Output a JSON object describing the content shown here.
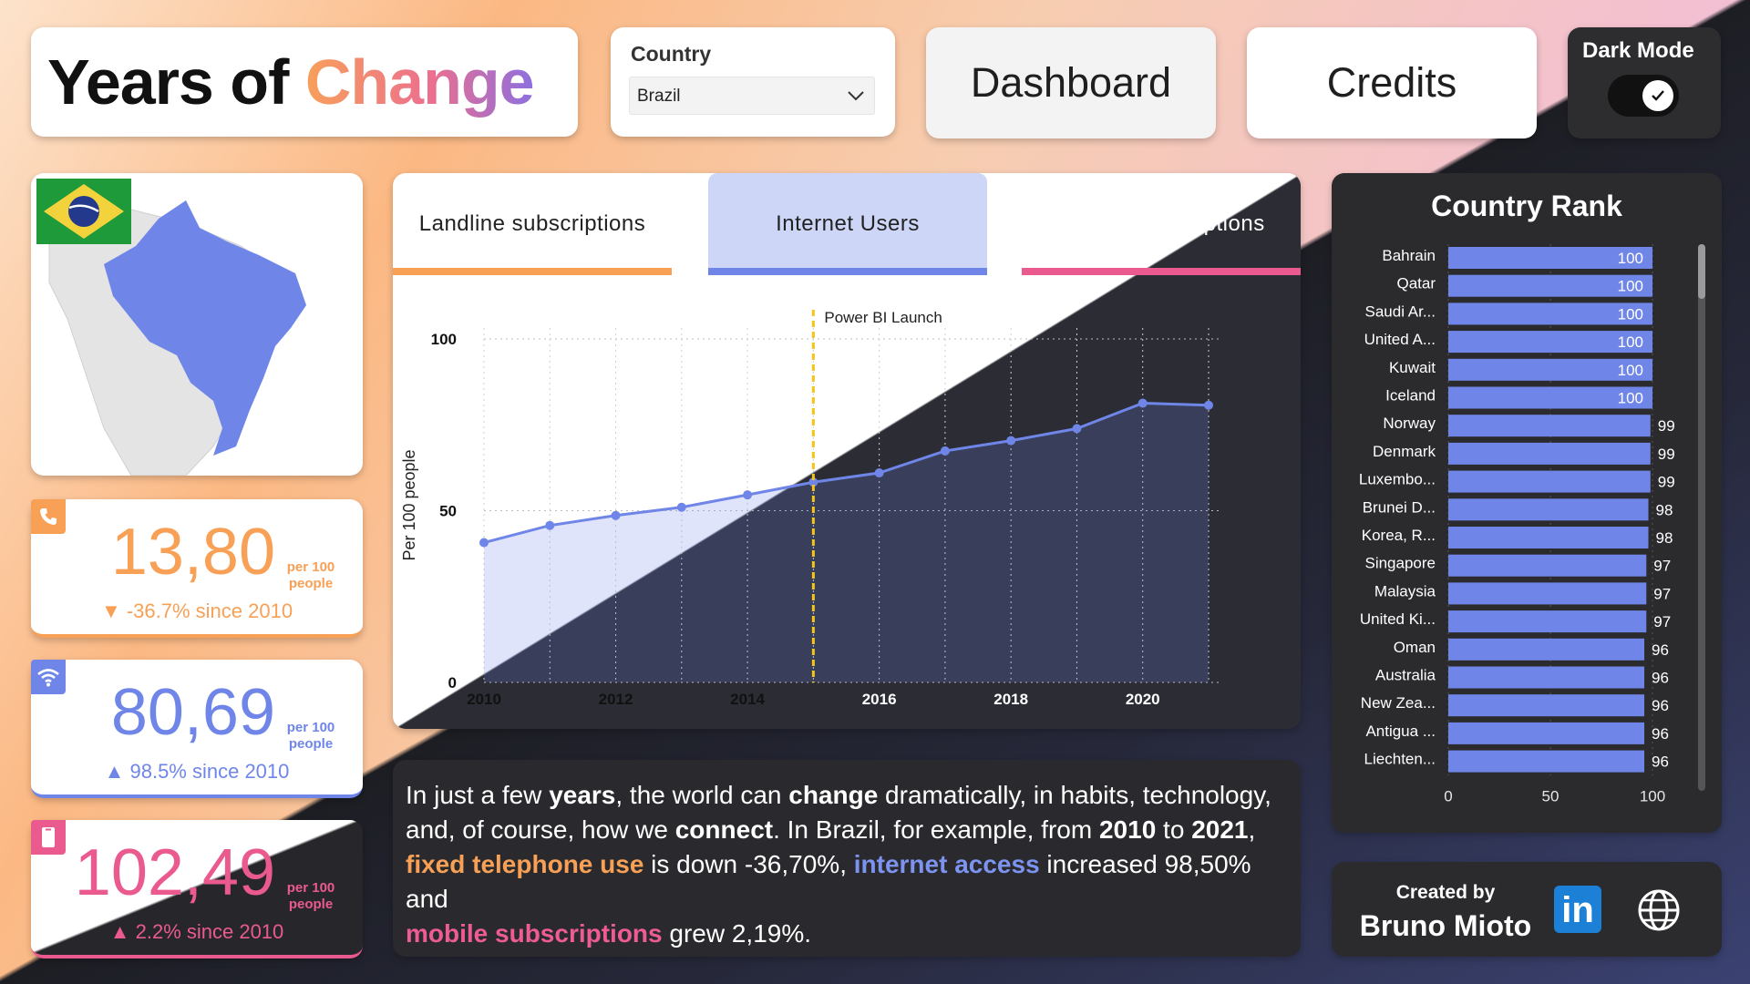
{
  "title": {
    "prefix": "Years of ",
    "accent": "Change"
  },
  "country_slicer": {
    "label": "Country",
    "value": "Brazil"
  },
  "nav": {
    "dashboard_label": "Dashboard",
    "credits_label": "Credits"
  },
  "dark_mode": {
    "label": "Dark Mode",
    "checked": true
  },
  "colors": {
    "landline": "#f7a056",
    "internet": "#6f86e8",
    "mobile": "#ea5a8f",
    "dark_panel": "#2b2b2e",
    "bar": "#6f86e8",
    "launch_line": "#f5c518"
  },
  "kpis": {
    "landline": {
      "icon": "phone-icon",
      "value": "13,80",
      "unit_line1": "per 100",
      "unit_line2": "people",
      "delta": "▼ -36.7% since 2010"
    },
    "internet": {
      "icon": "wifi-icon",
      "value": "80,69",
      "unit_line1": "per 100",
      "unit_line2": "people",
      "delta": "▲ 98.5% since 2010"
    },
    "mobile": {
      "icon": "mobile-icon",
      "value": "102,49",
      "unit_line1": "per 100",
      "unit_line2": "people",
      "delta": "▲ 2.2% since 2010"
    }
  },
  "tabs": [
    {
      "label": "Landline subscriptions",
      "active": false
    },
    {
      "label": "Internet Users",
      "active": true
    },
    {
      "label": "Mobile subscriptions",
      "active": false
    }
  ],
  "chart_data": [
    {
      "type": "area",
      "title": "",
      "xlabel": "",
      "ylabel": "Per 100 people",
      "x": [
        2010,
        2011,
        2012,
        2013,
        2014,
        2015,
        2016,
        2017,
        2018,
        2019,
        2020,
        2021
      ],
      "series": [
        {
          "name": "Internet Users",
          "values": [
            40.7,
            45.7,
            48.6,
            51.0,
            54.6,
            58.3,
            61.0,
            67.4,
            70.4,
            73.9,
            81.3,
            80.7
          ]
        }
      ],
      "xticks": [
        "2010",
        "2012",
        "2014",
        "2016",
        "2018",
        "2020"
      ],
      "yticks": [
        "0",
        "50",
        "100"
      ],
      "xlim": [
        2010,
        2021
      ],
      "ylim": [
        0,
        100
      ],
      "grid": true,
      "annotation": {
        "label": "Power BI Launch",
        "x": 2015
      }
    },
    {
      "type": "bar",
      "title": "Country Rank",
      "orientation": "horizontal",
      "categories": [
        "Bahrain",
        "Qatar",
        "Saudi Ar...",
        "United A...",
        "Kuwait",
        "Iceland",
        "Norway",
        "Denmark",
        "Luxembo...",
        "Brunei D...",
        "Korea, R...",
        "Singapore",
        "Malaysia",
        "United Ki...",
        "Oman",
        "Australia",
        "New Zea...",
        "Antigua ...",
        "Liechten..."
      ],
      "values": [
        100,
        100,
        100,
        100,
        100,
        100,
        99,
        99,
        99,
        98,
        98,
        97,
        97,
        97,
        96,
        96,
        96,
        96,
        96
      ],
      "xticks": [
        "0",
        "50",
        "100"
      ],
      "xlim": [
        0,
        100
      ]
    }
  ],
  "narrative": {
    "t1": "In just a few ",
    "b1": "years",
    "t2": ", the world can ",
    "b2": "change",
    "t3": " dramatically, in habits, technology, and, of course, how we ",
    "b3": "connect",
    "t4": ".   In Brazil, for example, from ",
    "b4": "2010",
    "t5": " to ",
    "b5": "2021",
    "t6": ",",
    "h1": "fixed telephone use",
    "t7": " is down -36,70%, ",
    "h2": "internet access",
    "t8": " increased 98,50% and ",
    "h3": "mobile subscriptions",
    "t9": " grew 2,19%."
  },
  "credits": {
    "created_by": "Created by",
    "author": "Bruno Mioto",
    "linkedin": "in",
    "linkedin_icon": "linkedin-icon",
    "web_icon": "globe-icon"
  }
}
